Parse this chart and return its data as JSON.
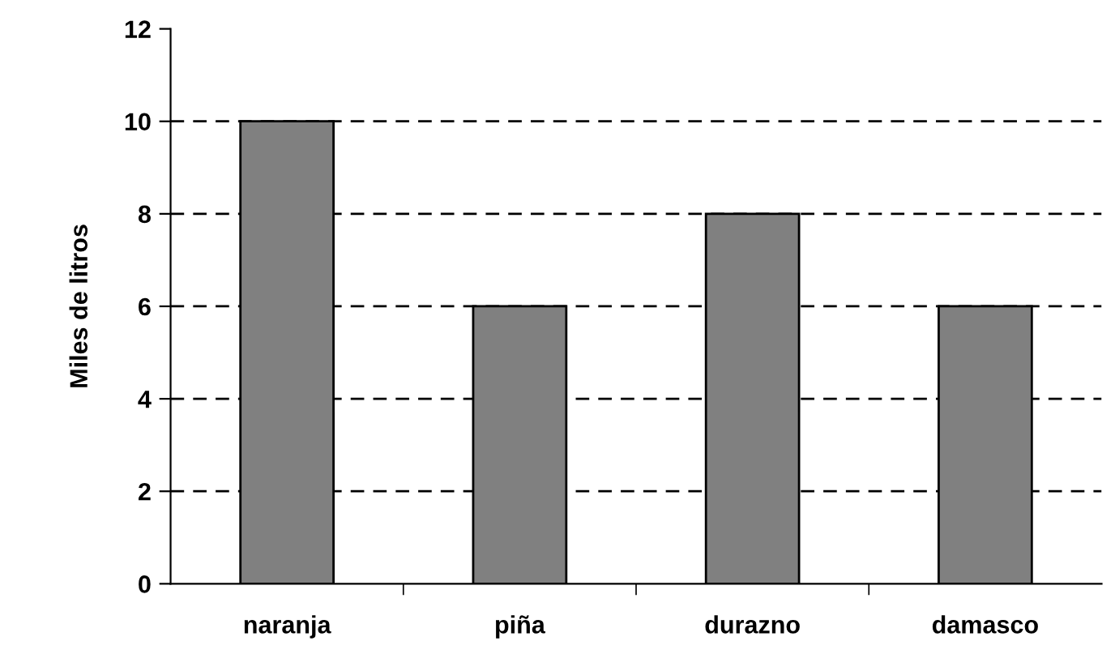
{
  "chart_data": {
    "type": "bar",
    "ylabel": "Miles de litros",
    "categories": [
      "naranja",
      "piña",
      "durazno",
      "damasco"
    ],
    "values": [
      10,
      6,
      8,
      6
    ],
    "color": "#808080",
    "ylim": [
      0,
      12
    ],
    "yticks": [
      0,
      2,
      4,
      6,
      8,
      10,
      12
    ],
    "grid": "y"
  }
}
